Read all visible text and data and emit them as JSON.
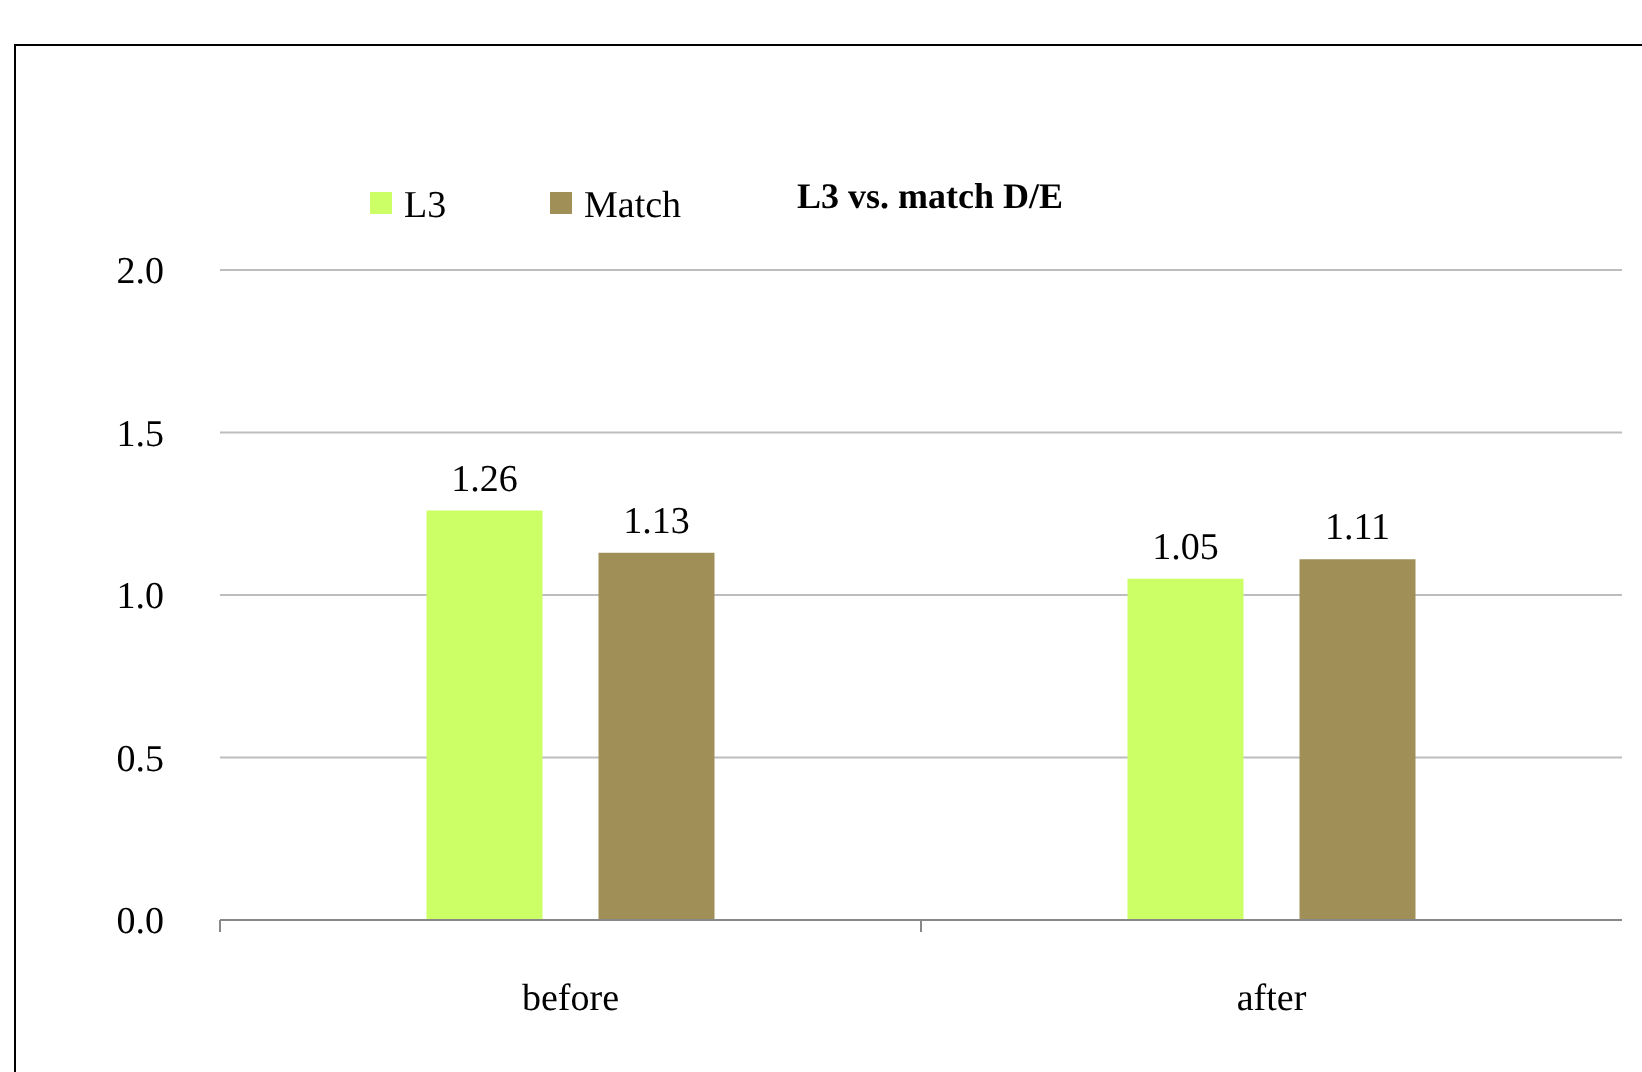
{
  "chart_data": {
    "type": "bar",
    "title": "L3 vs. match  D/E",
    "categories": [
      "before",
      "after"
    ],
    "series": [
      {
        "name": "L3",
        "color": "#ccff66",
        "values": [
          1.26,
          1.05
        ]
      },
      {
        "name": "Match",
        "color": "#a09058",
        "values": [
          1.13,
          1.11
        ]
      }
    ],
    "ylim": [
      0,
      2
    ],
    "yticks": [
      {
        "value": 0,
        "label": "0.0"
      },
      {
        "value": 0.5,
        "label": "0.5"
      },
      {
        "value": 1,
        "label": "1.0"
      },
      {
        "value": 1.5,
        "label": "1.5"
      },
      {
        "value": 2,
        "label": "2.0"
      }
    ],
    "grid": "y",
    "legend": "top left",
    "data_labels": true
  }
}
